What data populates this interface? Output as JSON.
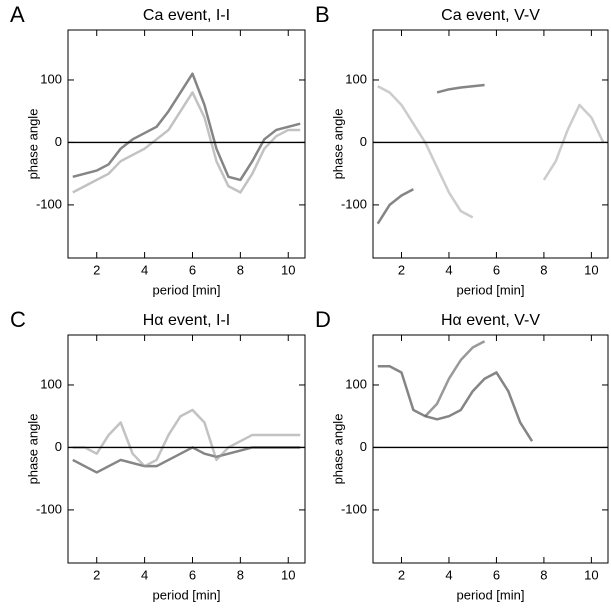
{
  "chart_data": [
    {
      "type": "line",
      "label": "A",
      "title": "Ca event, I-I",
      "xlabel": "period [min]",
      "ylabel": "phase angle",
      "x": [
        1,
        1.5,
        2,
        2.5,
        3,
        3.5,
        4,
        4.5,
        5,
        5.5,
        6,
        6.5,
        7,
        7.5,
        8,
        8.5,
        9,
        9.5,
        10,
        10.5
      ],
      "series": [
        {
          "color": "#333333",
          "values": [
            -55,
            -50,
            -45,
            -35,
            -10,
            5,
            15,
            25,
            50,
            80,
            110,
            60,
            -10,
            -55,
            -60,
            -30,
            5,
            20,
            25,
            30
          ]
        },
        {
          "color": "#999999",
          "values": [
            -80,
            -70,
            -60,
            -50,
            -30,
            -20,
            -10,
            5,
            20,
            50,
            80,
            40,
            -30,
            -70,
            -80,
            -50,
            -10,
            10,
            20,
            20
          ]
        }
      ],
      "xlim": [
        0.8,
        10.7
      ],
      "ylim": [
        -185,
        180
      ],
      "xticks": [
        2,
        4,
        6,
        8,
        10
      ],
      "yticks": [
        -100,
        0,
        100
      ],
      "hline": 0
    },
    {
      "type": "line",
      "label": "B",
      "title": "Ca event, V-V",
      "xlabel": "period [min]",
      "ylabel": "phase angle",
      "x": [
        1,
        1.5,
        2,
        2.5,
        3,
        3.5,
        4,
        4.5,
        5,
        5.5,
        6,
        6.5,
        7,
        7.5,
        8,
        8.5,
        9,
        9.5,
        10,
        10.5
      ],
      "series": [
        {
          "color": "#333333",
          "values": [
            -130,
            -100,
            -85,
            -75,
            null,
            null,
            null,
            null,
            null,
            null,
            null,
            null,
            null,
            null,
            null,
            null,
            null,
            null,
            null,
            null
          ]
        },
        {
          "color": "#333333",
          "values": [
            null,
            null,
            null,
            null,
            null,
            80,
            85,
            88,
            90,
            92,
            null,
            null,
            null,
            null,
            null,
            null,
            null,
            null,
            null,
            null
          ]
        },
        {
          "color": "#aaaaaa",
          "values": [
            90,
            80,
            60,
            30,
            0,
            -40,
            -80,
            -110,
            -120,
            null,
            null,
            null,
            null,
            null,
            null,
            null,
            null,
            null,
            null,
            null
          ]
        },
        {
          "color": "#aaaaaa",
          "values": [
            null,
            null,
            null,
            null,
            null,
            null,
            null,
            null,
            null,
            null,
            null,
            null,
            null,
            null,
            -60,
            -30,
            20,
            60,
            40,
            0
          ]
        }
      ],
      "xlim": [
        0.8,
        10.7
      ],
      "ylim": [
        -185,
        180
      ],
      "xticks": [
        2,
        4,
        6,
        8,
        10
      ],
      "yticks": [
        -100,
        0,
        100
      ],
      "hline": 0
    },
    {
      "type": "line",
      "label": "C",
      "title": "Hα event, I-I",
      "xlabel": "period [min]",
      "ylabel": "phase angle",
      "x": [
        1,
        1.5,
        2,
        2.5,
        3,
        3.5,
        4,
        4.5,
        5,
        5.5,
        6,
        6.5,
        7,
        7.5,
        8,
        8.5,
        9,
        9.5,
        10,
        10.5
      ],
      "series": [
        {
          "color": "#333333",
          "values": [
            -20,
            -30,
            -40,
            -30,
            -20,
            -25,
            -30,
            -30,
            -20,
            -10,
            0,
            -10,
            -15,
            -10,
            -5,
            0,
            0,
            0,
            0,
            0
          ]
        },
        {
          "color": "#999999",
          "values": [
            0,
            0,
            -10,
            20,
            40,
            -10,
            -30,
            -20,
            20,
            50,
            60,
            40,
            -20,
            0,
            10,
            20,
            20,
            20,
            20,
            20
          ]
        }
      ],
      "xlim": [
        0.8,
        10.7
      ],
      "ylim": [
        -185,
        180
      ],
      "xticks": [
        2,
        4,
        6,
        8,
        10
      ],
      "yticks": [
        -100,
        0,
        100
      ],
      "hline": 0
    },
    {
      "type": "line",
      "label": "D",
      "title": "Hα event, V-V",
      "xlabel": "period [min]",
      "ylabel": "phase angle",
      "x": [
        1,
        1.5,
        2,
        2.5,
        3,
        3.5,
        4,
        4.5,
        5,
        5.5,
        6,
        6.5,
        7,
        7.5,
        8,
        8.5,
        9,
        9.5,
        10,
        10.5
      ],
      "series": [
        {
          "color": "#333333",
          "values": [
            130,
            130,
            120,
            60,
            50,
            45,
            50,
            60,
            90,
            110,
            120,
            90,
            40,
            10,
            null,
            null,
            null,
            null,
            null,
            null
          ]
        },
        {
          "color": "#555555",
          "values": [
            null,
            null,
            null,
            null,
            50,
            70,
            110,
            140,
            160,
            170,
            null,
            null,
            null,
            null,
            null,
            null,
            null,
            null,
            null,
            null
          ]
        }
      ],
      "xlim": [
        0.8,
        10.7
      ],
      "ylim": [
        -185,
        180
      ],
      "xticks": [
        2,
        4,
        6,
        8,
        10
      ],
      "yticks": [
        -100,
        0,
        100
      ],
      "hline": 0
    }
  ]
}
